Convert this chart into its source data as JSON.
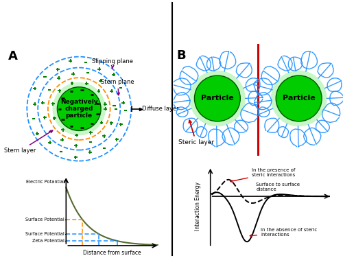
{
  "panel_A_label": "A",
  "panel_B_label": "B",
  "particle_color": "#00cc00",
  "particle_glow": "#90ee90",
  "stern_circle_color": "#ff8c00",
  "slip_circle_color": "#1e90ff",
  "ion_plus_color": "#008000",
  "particle_label": "Negatively\ncharged\nparticle",
  "particle_label_B": "Particle",
  "stern_layer_label": "Stern layer",
  "slipping_plane_label": "Slipping plane",
  "stern_plane_label": "Stern plane",
  "diffuse_layer_label": "Diffuse layer",
  "electric_potential_label": "Electric Potantial",
  "surface_potential1_label": "Surface Potential",
  "surface_potential2_label": "Surface Potential",
  "zeta_potential_label": "Zeta Potential",
  "x_axis_label": "Distance from surface",
  "steric_layer_label": "Steric layer",
  "interaction_energy_label": "Interaction Energy",
  "surface_distance_label": "Surface to surface\ndistance",
  "presence_label": "In the presence of\nsteric interactions",
  "absence_label": "In the absence of steric\ninteractions",
  "polymer_color": "#1e90ff",
  "red_line_color": "#cc0000",
  "arrow_color": "#800080",
  "red_arrow_color": "#cc0000",
  "curve_color": "#556b2f",
  "background_color": "#ffffff"
}
